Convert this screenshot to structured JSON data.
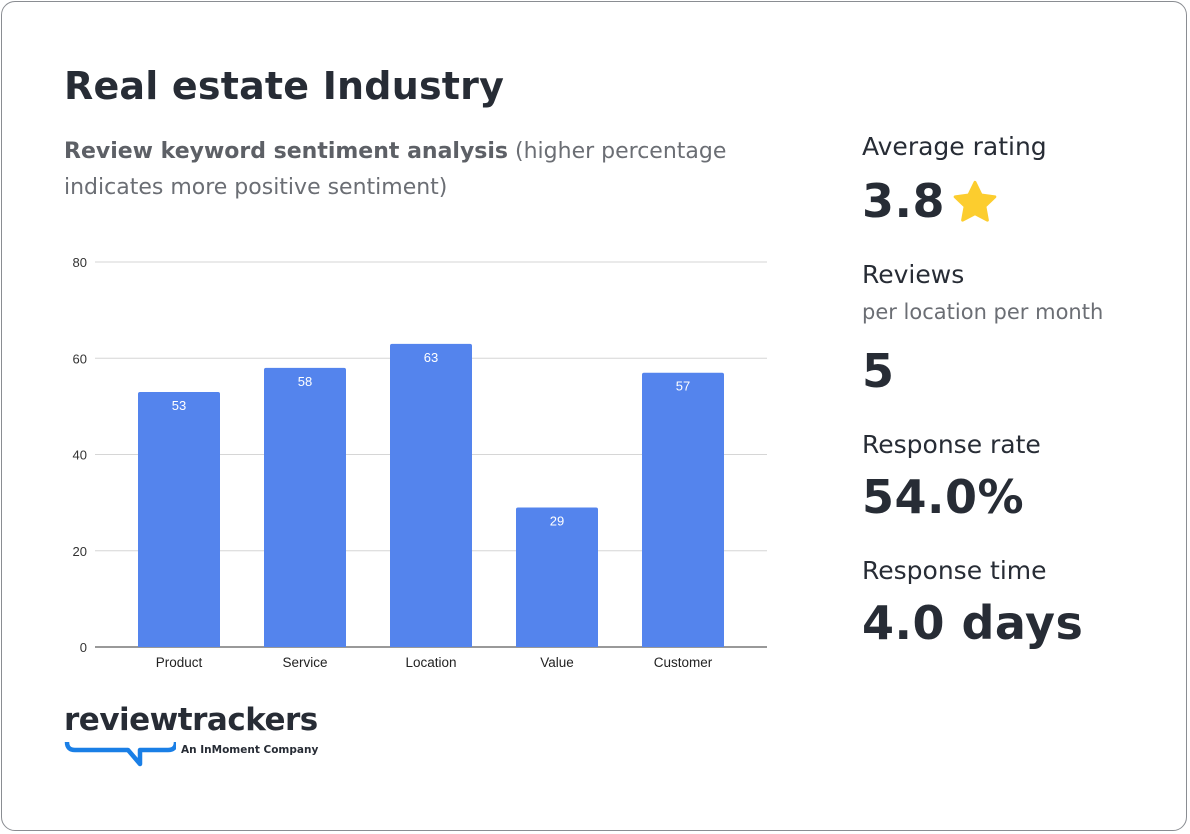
{
  "header": {
    "title": "Real estate Industry",
    "subtitle_bold": "Review keyword sentiment analysis",
    "subtitle_rest": " (higher percentage indicates more positive sentiment)"
  },
  "chart_data": {
    "type": "bar",
    "categories": [
      "Product",
      "Service",
      "Location",
      "Value",
      "Customer"
    ],
    "values": [
      53,
      58,
      63,
      29,
      57
    ],
    "ylim": [
      0,
      80
    ],
    "yticks": [
      0,
      20,
      40,
      60,
      80
    ],
    "grid": true,
    "data_labels": true,
    "bar_color": "#5484ed"
  },
  "stats": {
    "avg_rating_label": "Average rating",
    "avg_rating_value": "3.8",
    "star_color": "#fccd2e",
    "reviews_label": "Reviews",
    "reviews_sub": "per location per month",
    "reviews_value": "5",
    "response_rate_label": "Response rate",
    "response_rate_value": "54.0%",
    "response_time_label": "Response time",
    "response_time_value": "4.0 days"
  },
  "logo": {
    "name": "reviewtrackers",
    "tagline": "An InMoment Company",
    "accent": "#1a7fe6"
  }
}
